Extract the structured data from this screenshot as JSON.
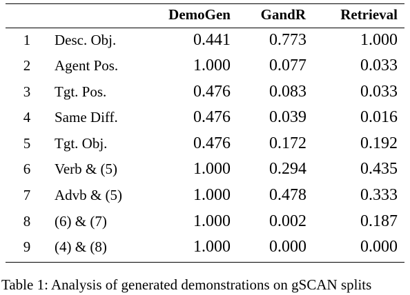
{
  "table": {
    "headers": [
      "",
      "",
      "DemoGen",
      "GandR",
      "Retrieval"
    ],
    "rows": [
      {
        "num": "1",
        "name": "Desc. Obj.",
        "demogen": "0.441",
        "gandr": "0.773",
        "retrieval": "1.000"
      },
      {
        "num": "2",
        "name": "Agent Pos.",
        "demogen": "1.000",
        "gandr": "0.077",
        "retrieval": "0.033"
      },
      {
        "num": "3",
        "name": "Tgt. Pos.",
        "demogen": "0.476",
        "gandr": "0.083",
        "retrieval": "0.033"
      },
      {
        "num": "4",
        "name": "Same Diff.",
        "demogen": "0.476",
        "gandr": "0.039",
        "retrieval": "0.016"
      },
      {
        "num": "5",
        "name": "Tgt. Obj.",
        "demogen": "0.476",
        "gandr": "0.172",
        "retrieval": "0.192"
      },
      {
        "num": "6",
        "name": "Verb & (5)",
        "demogen": "1.000",
        "gandr": "0.294",
        "retrieval": "0.435"
      },
      {
        "num": "7",
        "name": "Advb & (5)",
        "demogen": "1.000",
        "gandr": "0.478",
        "retrieval": "0.333"
      },
      {
        "num": "8",
        "name": "(6) & (7)",
        "demogen": "1.000",
        "gandr": "0.002",
        "retrieval": "0.187"
      },
      {
        "num": "9",
        "name": "(4) & (8)",
        "demogen": "1.000",
        "gandr": "0.000",
        "retrieval": "0.000"
      }
    ]
  },
  "caption": "Table 1: Analysis of generated demonstrations on gSCAN splits"
}
